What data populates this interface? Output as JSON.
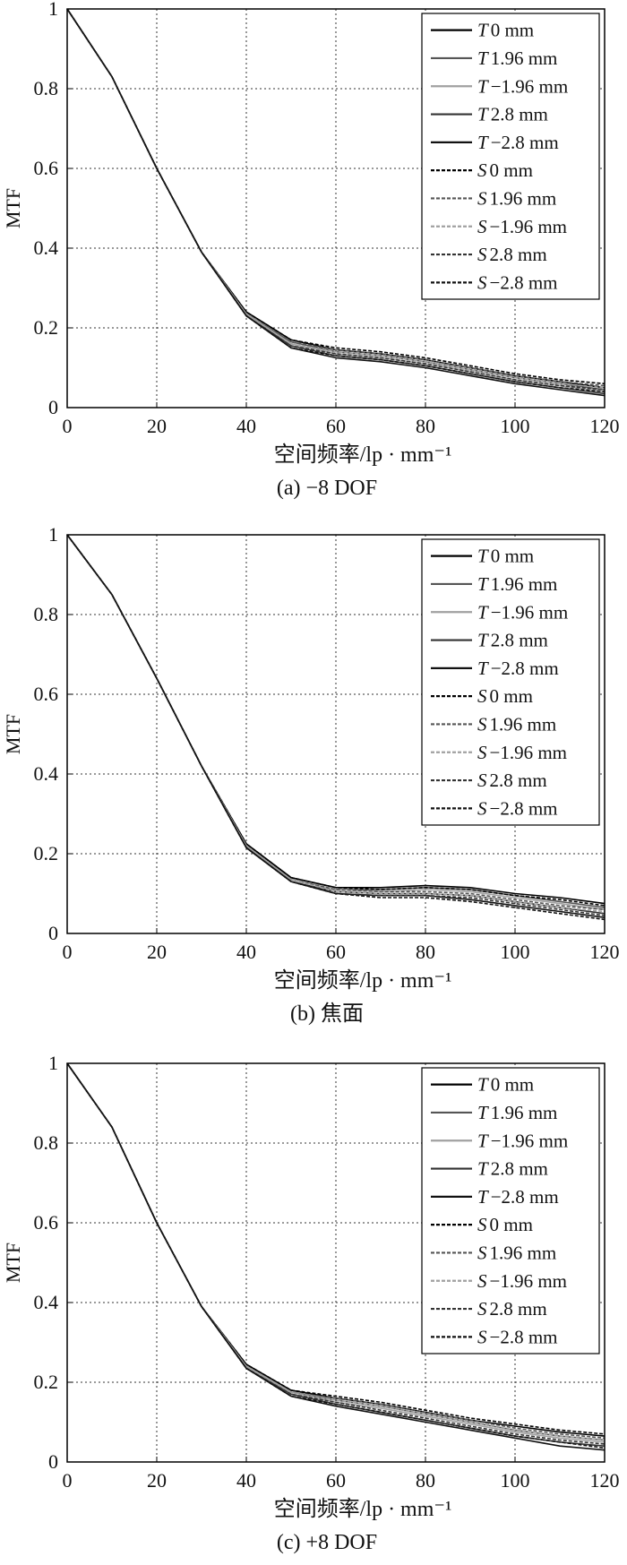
{
  "chart_data": [
    {
      "type": "line",
      "caption": "(a) −8 DOF",
      "xlabel": "空间频率/lp · mm⁻¹",
      "ylabel": "MTF",
      "xlim": [
        0,
        120
      ],
      "ylim": [
        0,
        1
      ],
      "xticks": [
        0,
        20,
        40,
        60,
        80,
        100,
        120
      ],
      "yticks": [
        0,
        0.2,
        0.4,
        0.6,
        0.8,
        1
      ],
      "ytick_labels": [
        "0",
        "0.2",
        "0.4",
        "0.6",
        "0.8",
        "1"
      ],
      "grid": true,
      "legend_position": "top-right",
      "x": [
        0,
        10,
        20,
        30,
        40,
        50,
        60,
        70,
        80,
        90,
        100,
        110,
        120
      ],
      "series": [
        {
          "name": "T 0 mm",
          "prefix": "T",
          "suffix": "0 mm",
          "color": "#000000",
          "dash": "solid",
          "values": [
            1.0,
            0.83,
            0.6,
            0.39,
            0.24,
            0.17,
            0.145,
            0.135,
            0.12,
            0.1,
            0.08,
            0.065,
            0.05
          ]
        },
        {
          "name": "T 1.96 mm",
          "prefix": "T",
          "suffix": "1.96 mm",
          "color": "#555555",
          "dash": "solid",
          "values": [
            1.0,
            0.83,
            0.6,
            0.39,
            0.235,
            0.165,
            0.14,
            0.13,
            0.115,
            0.095,
            0.075,
            0.06,
            0.045
          ]
        },
        {
          "name": "T −1.96 mm",
          "prefix": "T",
          "suffix": "−1.96 mm",
          "color": "#a0a0a0",
          "dash": "solid",
          "values": [
            1.0,
            0.83,
            0.6,
            0.39,
            0.235,
            0.16,
            0.135,
            0.125,
            0.11,
            0.09,
            0.07,
            0.055,
            0.04
          ]
        },
        {
          "name": "T 2.8 mm",
          "prefix": "T",
          "suffix": "2.8 mm",
          "color": "#333333",
          "dash": "solid",
          "values": [
            1.0,
            0.83,
            0.6,
            0.39,
            0.23,
            0.155,
            0.13,
            0.12,
            0.105,
            0.085,
            0.065,
            0.05,
            0.035
          ]
        },
        {
          "name": "T −2.8 mm",
          "prefix": "T",
          "suffix": "−2.8 mm",
          "color": "#111111",
          "dash": "solid",
          "values": [
            1.0,
            0.83,
            0.6,
            0.39,
            0.23,
            0.15,
            0.125,
            0.115,
            0.1,
            0.08,
            0.06,
            0.045,
            0.03
          ]
        },
        {
          "name": "S 0 mm",
          "prefix": "S",
          "suffix": "0 mm",
          "color": "#000000",
          "dash": "dashed",
          "values": [
            1.0,
            0.83,
            0.6,
            0.39,
            0.24,
            0.17,
            0.15,
            0.14,
            0.125,
            0.105,
            0.085,
            0.07,
            0.06
          ]
        },
        {
          "name": "S 1.96 mm",
          "prefix": "S",
          "suffix": "1.96 mm",
          "color": "#555555",
          "dash": "dashed",
          "values": [
            1.0,
            0.83,
            0.6,
            0.39,
            0.235,
            0.165,
            0.145,
            0.135,
            0.12,
            0.1,
            0.08,
            0.065,
            0.055
          ]
        },
        {
          "name": "S −1.96 mm",
          "prefix": "S",
          "suffix": "−1.96 mm",
          "color": "#a0a0a0",
          "dash": "dashed",
          "values": [
            1.0,
            0.83,
            0.6,
            0.39,
            0.235,
            0.16,
            0.14,
            0.13,
            0.115,
            0.095,
            0.075,
            0.06,
            0.05
          ]
        },
        {
          "name": "S 2.8 mm",
          "prefix": "S",
          "suffix": "2.8 mm",
          "color": "#333333",
          "dash": "dashed",
          "values": [
            1.0,
            0.83,
            0.6,
            0.39,
            0.23,
            0.155,
            0.135,
            0.125,
            0.11,
            0.09,
            0.07,
            0.055,
            0.045
          ]
        },
        {
          "name": "S −2.8 mm",
          "prefix": "S",
          "suffix": "−2.8 mm",
          "color": "#111111",
          "dash": "dashed",
          "values": [
            1.0,
            0.83,
            0.6,
            0.39,
            0.23,
            0.15,
            0.13,
            0.12,
            0.105,
            0.085,
            0.065,
            0.05,
            0.04
          ]
        }
      ]
    },
    {
      "type": "line",
      "caption": "(b) 焦面",
      "xlabel": "空间频率/lp · mm⁻¹",
      "ylabel": "MTF",
      "xlim": [
        0,
        120
      ],
      "ylim": [
        0,
        1
      ],
      "xticks": [
        0,
        20,
        40,
        60,
        80,
        100,
        120
      ],
      "yticks": [
        0,
        0.2,
        0.4,
        0.6,
        0.8,
        1
      ],
      "ytick_labels": [
        "0",
        "0.2",
        "0.4",
        "0.6",
        "0.8",
        "1"
      ],
      "grid": true,
      "legend_position": "top-right",
      "x": [
        0,
        10,
        20,
        30,
        40,
        50,
        60,
        70,
        80,
        90,
        100,
        110,
        120
      ],
      "series": [
        {
          "name": "T 0 mm",
          "prefix": "T",
          "suffix": "0 mm",
          "color": "#000000",
          "dash": "solid",
          "values": [
            1.0,
            0.85,
            0.64,
            0.42,
            0.225,
            0.14,
            0.115,
            0.115,
            0.12,
            0.115,
            0.1,
            0.09,
            0.075
          ]
        },
        {
          "name": "T 1.96 mm",
          "prefix": "T",
          "suffix": "1.96 mm",
          "color": "#555555",
          "dash": "solid",
          "values": [
            1.0,
            0.85,
            0.64,
            0.42,
            0.22,
            0.135,
            0.11,
            0.11,
            0.115,
            0.11,
            0.095,
            0.08,
            0.065
          ]
        },
        {
          "name": "T −1.96 mm",
          "prefix": "T",
          "suffix": "−1.96 mm",
          "color": "#a0a0a0",
          "dash": "solid",
          "values": [
            1.0,
            0.85,
            0.64,
            0.42,
            0.22,
            0.135,
            0.11,
            0.105,
            0.11,
            0.105,
            0.09,
            0.075,
            0.06
          ]
        },
        {
          "name": "T 2.8 mm",
          "prefix": "T",
          "suffix": "2.8 mm",
          "color": "#333333",
          "dash": "solid",
          "values": [
            1.0,
            0.85,
            0.64,
            0.42,
            0.215,
            0.13,
            0.105,
            0.1,
            0.1,
            0.095,
            0.08,
            0.065,
            0.05
          ]
        },
        {
          "name": "T −2.8 mm",
          "prefix": "T",
          "suffix": "−2.8 mm",
          "color": "#111111",
          "dash": "solid",
          "values": [
            1.0,
            0.85,
            0.64,
            0.42,
            0.215,
            0.13,
            0.1,
            0.095,
            0.095,
            0.085,
            0.07,
            0.055,
            0.04
          ]
        },
        {
          "name": "S 0 mm",
          "prefix": "S",
          "suffix": "0 mm",
          "color": "#000000",
          "dash": "dashed",
          "values": [
            1.0,
            0.85,
            0.64,
            0.42,
            0.225,
            0.14,
            0.115,
            0.11,
            0.115,
            0.11,
            0.095,
            0.085,
            0.07
          ]
        },
        {
          "name": "S 1.96 mm",
          "prefix": "S",
          "suffix": "1.96 mm",
          "color": "#555555",
          "dash": "dashed",
          "values": [
            1.0,
            0.85,
            0.64,
            0.42,
            0.22,
            0.135,
            0.11,
            0.105,
            0.105,
            0.1,
            0.085,
            0.07,
            0.06
          ]
        },
        {
          "name": "S −1.96 mm",
          "prefix": "S",
          "suffix": "−1.96 mm",
          "color": "#a0a0a0",
          "dash": "dashed",
          "values": [
            1.0,
            0.85,
            0.64,
            0.42,
            0.22,
            0.135,
            0.105,
            0.1,
            0.1,
            0.095,
            0.08,
            0.065,
            0.055
          ]
        },
        {
          "name": "S 2.8 mm",
          "prefix": "S",
          "suffix": "2.8 mm",
          "color": "#333333",
          "dash": "dashed",
          "values": [
            1.0,
            0.85,
            0.64,
            0.42,
            0.215,
            0.13,
            0.1,
            0.095,
            0.095,
            0.09,
            0.075,
            0.06,
            0.045
          ]
        },
        {
          "name": "S −2.8 mm",
          "prefix": "S",
          "suffix": "−2.8 mm",
          "color": "#111111",
          "dash": "dashed",
          "values": [
            1.0,
            0.85,
            0.64,
            0.42,
            0.215,
            0.13,
            0.1,
            0.09,
            0.09,
            0.08,
            0.065,
            0.05,
            0.035
          ]
        }
      ]
    },
    {
      "type": "line",
      "caption": "(c) +8 DOF",
      "xlabel": "空间频率/lp · mm⁻¹",
      "ylabel": "MTF",
      "xlim": [
        0,
        120
      ],
      "ylim": [
        0,
        1
      ],
      "xticks": [
        0,
        20,
        40,
        60,
        80,
        100,
        120
      ],
      "yticks": [
        0,
        0.2,
        0.4,
        0.6,
        0.8,
        1
      ],
      "ytick_labels": [
        "0",
        "0.2",
        "0.4",
        "0.6",
        "0.8",
        "1"
      ],
      "grid": true,
      "legend_position": "top-right",
      "x": [
        0,
        10,
        20,
        30,
        40,
        50,
        60,
        70,
        80,
        90,
        100,
        110,
        120
      ],
      "series": [
        {
          "name": "T 0 mm",
          "prefix": "T",
          "suffix": "0 mm",
          "color": "#000000",
          "dash": "solid",
          "values": [
            1.0,
            0.84,
            0.6,
            0.39,
            0.245,
            0.18,
            0.16,
            0.145,
            0.125,
            0.105,
            0.09,
            0.075,
            0.065
          ]
        },
        {
          "name": "T 1.96 mm",
          "prefix": "T",
          "suffix": "1.96 mm",
          "color": "#555555",
          "dash": "solid",
          "values": [
            1.0,
            0.84,
            0.6,
            0.39,
            0.24,
            0.175,
            0.155,
            0.14,
            0.12,
            0.1,
            0.08,
            0.065,
            0.055
          ]
        },
        {
          "name": "T −1.96 mm",
          "prefix": "T",
          "suffix": "−1.96 mm",
          "color": "#a0a0a0",
          "dash": "solid",
          "values": [
            1.0,
            0.84,
            0.6,
            0.39,
            0.24,
            0.175,
            0.15,
            0.135,
            0.115,
            0.095,
            0.075,
            0.06,
            0.05
          ]
        },
        {
          "name": "T 2.8 mm",
          "prefix": "T",
          "suffix": "2.8 mm",
          "color": "#333333",
          "dash": "solid",
          "values": [
            1.0,
            0.84,
            0.6,
            0.39,
            0.235,
            0.17,
            0.145,
            0.125,
            0.105,
            0.085,
            0.065,
            0.05,
            0.04
          ]
        },
        {
          "name": "T −2.8 mm",
          "prefix": "T",
          "suffix": "−2.8 mm",
          "color": "#111111",
          "dash": "solid",
          "values": [
            1.0,
            0.84,
            0.6,
            0.39,
            0.235,
            0.165,
            0.14,
            0.12,
            0.1,
            0.08,
            0.06,
            0.04,
            0.03
          ]
        },
        {
          "name": "S 0 mm",
          "prefix": "S",
          "suffix": "0 mm",
          "color": "#000000",
          "dash": "dashed",
          "values": [
            1.0,
            0.84,
            0.6,
            0.39,
            0.245,
            0.18,
            0.165,
            0.15,
            0.13,
            0.11,
            0.095,
            0.08,
            0.07
          ]
        },
        {
          "name": "S 1.96 mm",
          "prefix": "S",
          "suffix": "1.96 mm",
          "color": "#555555",
          "dash": "dashed",
          "values": [
            1.0,
            0.84,
            0.6,
            0.39,
            0.24,
            0.175,
            0.16,
            0.145,
            0.125,
            0.105,
            0.085,
            0.07,
            0.06
          ]
        },
        {
          "name": "S −1.96 mm",
          "prefix": "S",
          "suffix": "−1.96 mm",
          "color": "#a0a0a0",
          "dash": "dashed",
          "values": [
            1.0,
            0.84,
            0.6,
            0.39,
            0.24,
            0.175,
            0.155,
            0.14,
            0.12,
            0.1,
            0.08,
            0.065,
            0.055
          ]
        },
        {
          "name": "S 2.8 mm",
          "prefix": "S",
          "suffix": "2.8 mm",
          "color": "#333333",
          "dash": "dashed",
          "values": [
            1.0,
            0.84,
            0.6,
            0.39,
            0.235,
            0.17,
            0.15,
            0.13,
            0.11,
            0.09,
            0.07,
            0.055,
            0.045
          ]
        },
        {
          "name": "S −2.8 mm",
          "prefix": "S",
          "suffix": "−2.8 mm",
          "color": "#111111",
          "dash": "dashed",
          "values": [
            1.0,
            0.84,
            0.6,
            0.39,
            0.235,
            0.165,
            0.145,
            0.125,
            0.105,
            0.085,
            0.065,
            0.05,
            0.035
          ]
        }
      ]
    }
  ]
}
